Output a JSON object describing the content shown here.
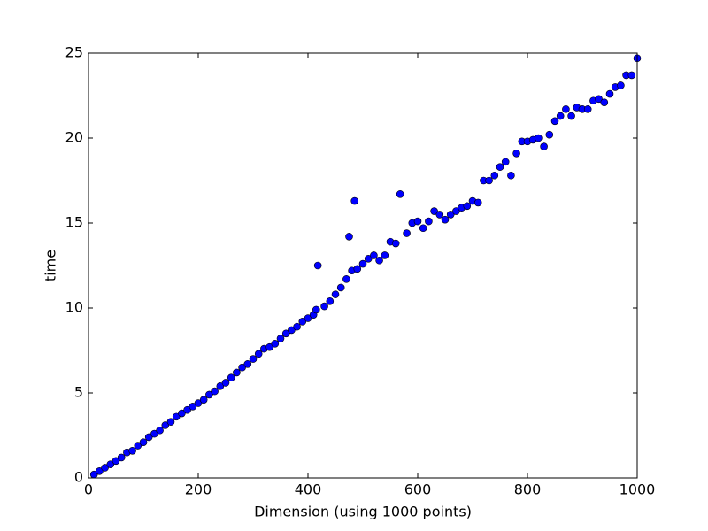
{
  "chart_data": {
    "type": "scatter",
    "x_label": "Dimension (using 1000 points)",
    "y_label": "time",
    "xlim": [
      0,
      1000
    ],
    "ylim": [
      0,
      25
    ],
    "xticks": [
      0,
      200,
      400,
      600,
      800,
      1000
    ],
    "yticks": [
      0,
      5,
      10,
      15,
      20,
      25
    ],
    "grid": false,
    "series": [
      {
        "color": "#0000ff",
        "x": [
          10,
          20,
          30,
          40,
          50,
          60,
          70,
          80,
          90,
          100,
          110,
          120,
          130,
          140,
          150,
          160,
          170,
          180,
          190,
          200,
          210,
          220,
          230,
          240,
          250,
          260,
          270,
          280,
          290,
          300,
          310,
          320,
          330,
          340,
          350,
          360,
          370,
          380,
          390,
          400,
          410,
          415,
          418,
          430,
          440,
          450,
          460,
          470,
          475,
          480,
          485,
          490,
          500,
          510,
          520,
          530,
          540,
          550,
          560,
          568,
          580,
          590,
          600,
          610,
          620,
          630,
          640,
          650,
          660,
          670,
          680,
          690,
          700,
          710,
          720,
          730,
          740,
          750,
          760,
          770,
          780,
          790,
          800,
          810,
          820,
          830,
          840,
          850,
          860,
          870,
          880,
          890,
          900,
          910,
          920,
          930,
          940,
          950,
          960,
          970,
          980,
          990,
          1000
        ],
        "values": [
          0.2,
          0.4,
          0.6,
          0.8,
          1.0,
          1.2,
          1.5,
          1.6,
          1.9,
          2.1,
          2.4,
          2.6,
          2.8,
          3.1,
          3.3,
          3.6,
          3.8,
          4.0,
          4.2,
          4.4,
          4.6,
          4.9,
          5.1,
          5.4,
          5.6,
          5.9,
          6.2,
          6.5,
          6.7,
          7.0,
          7.3,
          7.6,
          7.7,
          7.9,
          8.2,
          8.5,
          8.7,
          8.9,
          9.2,
          9.4,
          9.6,
          9.9,
          12.5,
          10.1,
          10.4,
          10.8,
          11.2,
          11.7,
          14.2,
          12.2,
          16.3,
          12.3,
          12.6,
          12.9,
          13.1,
          12.8,
          13.1,
          13.9,
          13.8,
          16.7,
          14.4,
          15.0,
          15.1,
          14.7,
          15.1,
          15.7,
          15.5,
          15.2,
          15.5,
          15.7,
          15.9,
          16.0,
          16.3,
          16.2,
          17.5,
          17.5,
          17.8,
          18.3,
          18.6,
          17.8,
          19.1,
          19.8,
          19.8,
          19.9,
          20.0,
          19.5,
          20.2,
          21.0,
          21.3,
          21.7,
          21.3,
          21.8,
          21.7,
          21.7,
          22.2,
          22.3,
          22.1,
          22.6,
          23.0,
          23.1,
          23.7,
          23.7,
          24.7
        ]
      }
    ]
  }
}
